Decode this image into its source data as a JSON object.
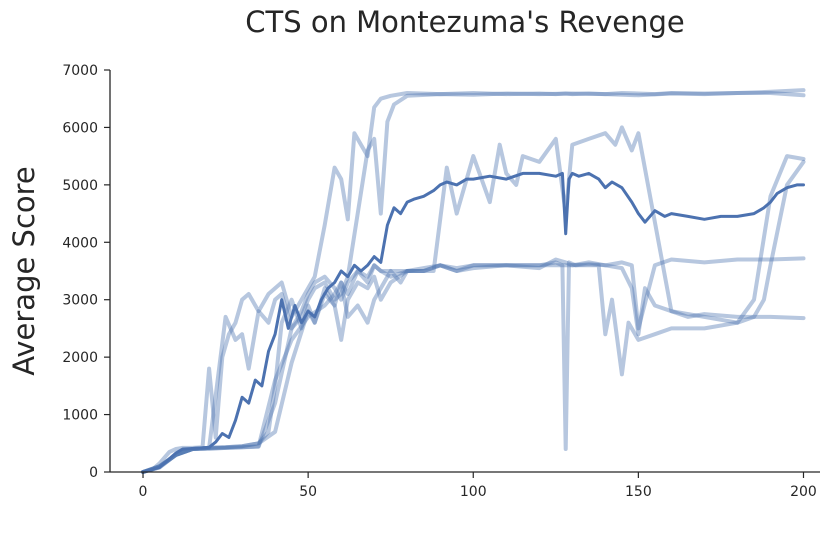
{
  "chart_data": {
    "type": "line",
    "title": "CTS on Montezuma's Revenge",
    "xlabel": "",
    "ylabel": "Average Score",
    "xlim": [
      -10,
      205
    ],
    "ylim": [
      0,
      7000
    ],
    "xticks": [
      "0",
      "50",
      "100",
      "150",
      "200"
    ],
    "yticks": [
      "0",
      "1000",
      "2000",
      "3000",
      "4000",
      "5000",
      "6000",
      "7000"
    ],
    "grid": false,
    "legend": "none",
    "colors": {
      "runs": "#4c72b0",
      "mean": "#4c72b0"
    },
    "series": [
      {
        "role": "run",
        "x": [
          0,
          3,
          5,
          8,
          10,
          12,
          15,
          18,
          20,
          22,
          24,
          26,
          28,
          30,
          32,
          35,
          38,
          40,
          42,
          45,
          48,
          50,
          52,
          55,
          58,
          60,
          62,
          64,
          66,
          68,
          70,
          72,
          75,
          80,
          90,
          100,
          110,
          120,
          125,
          128,
          130,
          135,
          140,
          145,
          150,
          155,
          160,
          170,
          180,
          190,
          200
        ],
        "values": [
          0,
          50,
          150,
          350,
          400,
          420,
          420,
          430,
          1800,
          600,
          2000,
          2400,
          2600,
          3000,
          3100,
          2800,
          3100,
          3200,
          3300,
          2700,
          3000,
          3200,
          3400,
          4300,
          5300,
          5100,
          4400,
          5900,
          5700,
          5500,
          6350,
          6500,
          6550,
          6600,
          6580,
          6600,
          6580,
          6590,
          6580,
          6590,
          6580,
          6590,
          6580,
          6600,
          6590,
          6580,
          6600,
          6590,
          6600,
          6620,
          6650
        ]
      },
      {
        "role": "run",
        "x": [
          0,
          5,
          10,
          15,
          20,
          25,
          28,
          30,
          32,
          35,
          38,
          40,
          42,
          45,
          48,
          50,
          52,
          55,
          58,
          60,
          62,
          65,
          68,
          70,
          72,
          74,
          76,
          80,
          90,
          100,
          110,
          120,
          130,
          140,
          150,
          160,
          170,
          180,
          190,
          200
        ],
        "values": [
          0,
          80,
          300,
          400,
          420,
          2700,
          2300,
          2400,
          1800,
          2800,
          2600,
          3000,
          3100,
          2500,
          2700,
          3000,
          3200,
          3300,
          3000,
          3100,
          3400,
          4500,
          5600,
          5800,
          4500,
          6100,
          6400,
          6550,
          6580,
          6570,
          6590,
          6580,
          6590,
          6580,
          6560,
          6590,
          6580,
          6600,
          6600,
          6560
        ]
      },
      {
        "role": "run",
        "x": [
          0,
          5,
          10,
          15,
          20,
          25,
          30,
          35,
          38,
          40,
          42,
          45,
          48,
          50,
          52,
          55,
          58,
          60,
          62,
          65,
          68,
          70,
          72,
          75,
          80,
          88,
          92,
          95,
          100,
          105,
          108,
          110,
          113,
          115,
          120,
          125,
          128,
          130,
          135,
          140,
          143,
          145,
          148,
          150,
          160,
          170,
          180,
          185,
          190,
          195,
          200
        ],
        "values": [
          0,
          100,
          300,
          400,
          420,
          430,
          450,
          500,
          700,
          1500,
          2600,
          3000,
          2500,
          2900,
          2600,
          3200,
          2900,
          3300,
          3100,
          3500,
          3300,
          3600,
          3500,
          3500,
          3500,
          3500,
          5300,
          4500,
          5500,
          4700,
          5700,
          5200,
          5000,
          5500,
          5400,
          5800,
          4500,
          5700,
          5800,
          5900,
          5700,
          6000,
          5600,
          5900,
          2800,
          2700,
          2600,
          3000,
          4800,
          5500,
          5450
        ]
      },
      {
        "role": "run",
        "x": [
          0,
          5,
          10,
          15,
          20,
          25,
          30,
          35,
          40,
          45,
          48,
          50,
          52,
          55,
          58,
          60,
          62,
          65,
          68,
          70,
          72,
          75,
          80,
          85,
          90,
          95,
          100,
          110,
          120,
          125,
          128,
          130,
          135,
          140,
          145,
          148,
          150,
          155,
          160,
          170,
          180,
          190,
          200
        ],
        "values": [
          0,
          100,
          300,
          400,
          420,
          420,
          430,
          440,
          1200,
          2500,
          2800,
          3100,
          3300,
          3400,
          3200,
          3000,
          3300,
          3500,
          3400,
          3600,
          3500,
          3400,
          3500,
          3550,
          3600,
          3500,
          3550,
          3600,
          3550,
          3700,
          3650,
          3600,
          3650,
          3600,
          3650,
          3600,
          2500,
          3600,
          3700,
          3650,
          3700,
          3700,
          3720
        ]
      },
      {
        "role": "run",
        "x": [
          0,
          5,
          10,
          15,
          20,
          25,
          30,
          35,
          40,
          45,
          50,
          55,
          58,
          60,
          62,
          65,
          68,
          70,
          72,
          75,
          78,
          80,
          85,
          90,
          95,
          100,
          110,
          120,
          125,
          127,
          128,
          129,
          131,
          135,
          140,
          145,
          148,
          150,
          152,
          155,
          160,
          165,
          170,
          180,
          190,
          200
        ],
        "values": [
          0,
          80,
          300,
          400,
          400,
          420,
          430,
          450,
          1600,
          2300,
          2700,
          2900,
          3100,
          3300,
          2700,
          2900,
          2600,
          3000,
          3200,
          3500,
          3300,
          3500,
          3500,
          3600,
          3550,
          3600,
          3600,
          3600,
          3650,
          3600,
          400,
          3650,
          3600,
          3620,
          3600,
          3550,
          3200,
          2400,
          3200,
          2900,
          2800,
          2700,
          2750,
          2700,
          2700,
          2680
        ]
      },
      {
        "role": "run",
        "x": [
          0,
          5,
          10,
          15,
          20,
          25,
          30,
          35,
          40,
          45,
          50,
          52,
          55,
          58,
          60,
          62,
          65,
          68,
          70,
          72,
          75,
          80,
          85,
          90,
          95,
          100,
          110,
          120,
          125,
          130,
          135,
          138,
          140,
          142,
          145,
          147,
          150,
          155,
          160,
          170,
          180,
          185,
          188,
          190,
          195,
          200
        ],
        "values": [
          0,
          100,
          300,
          400,
          420,
          430,
          450,
          500,
          700,
          1900,
          2800,
          2600,
          3100,
          2900,
          2300,
          3000,
          3300,
          3200,
          3400,
          3000,
          3300,
          3500,
          3500,
          3600,
          3500,
          3600,
          3600,
          3600,
          3600,
          3600,
          3600,
          3600,
          2400,
          3000,
          1700,
          2600,
          2300,
          2400,
          2500,
          2500,
          2600,
          2700,
          3000,
          3600,
          5000,
          5400
        ]
      },
      {
        "role": "mean",
        "x": [
          0,
          5,
          10,
          12,
          15,
          18,
          20,
          22,
          24,
          26,
          28,
          30,
          32,
          34,
          36,
          38,
          40,
          42,
          44,
          46,
          48,
          50,
          52,
          54,
          56,
          58,
          60,
          62,
          64,
          66,
          68,
          70,
          72,
          74,
          76,
          78,
          80,
          82,
          85,
          88,
          90,
          92,
          95,
          98,
          100,
          105,
          110,
          115,
          120,
          125,
          127,
          128,
          129,
          130,
          132,
          135,
          138,
          140,
          142,
          145,
          148,
          150,
          152,
          155,
          158,
          160,
          165,
          170,
          175,
          180,
          185,
          188,
          190,
          192,
          195,
          198,
          200
        ],
        "values": [
          0,
          80,
          330,
          400,
          410,
          420,
          430,
          520,
          670,
          600,
          900,
          1300,
          1200,
          1600,
          1500,
          2100,
          2400,
          3000,
          2500,
          2900,
          2600,
          2800,
          2700,
          3000,
          3200,
          3300,
          3500,
          3400,
          3600,
          3500,
          3600,
          3750,
          3650,
          4300,
          4600,
          4500,
          4700,
          4750,
          4800,
          4900,
          5000,
          5050,
          5000,
          5100,
          5100,
          5150,
          5100,
          5200,
          5200,
          5150,
          5200,
          4150,
          5100,
          5200,
          5150,
          5200,
          5100,
          4950,
          5050,
          4950,
          4700,
          4500,
          4350,
          4550,
          4450,
          4500,
          4450,
          4400,
          4450,
          4450,
          4500,
          4600,
          4700,
          4850,
          4950,
          5000,
          5000
        ]
      }
    ]
  }
}
